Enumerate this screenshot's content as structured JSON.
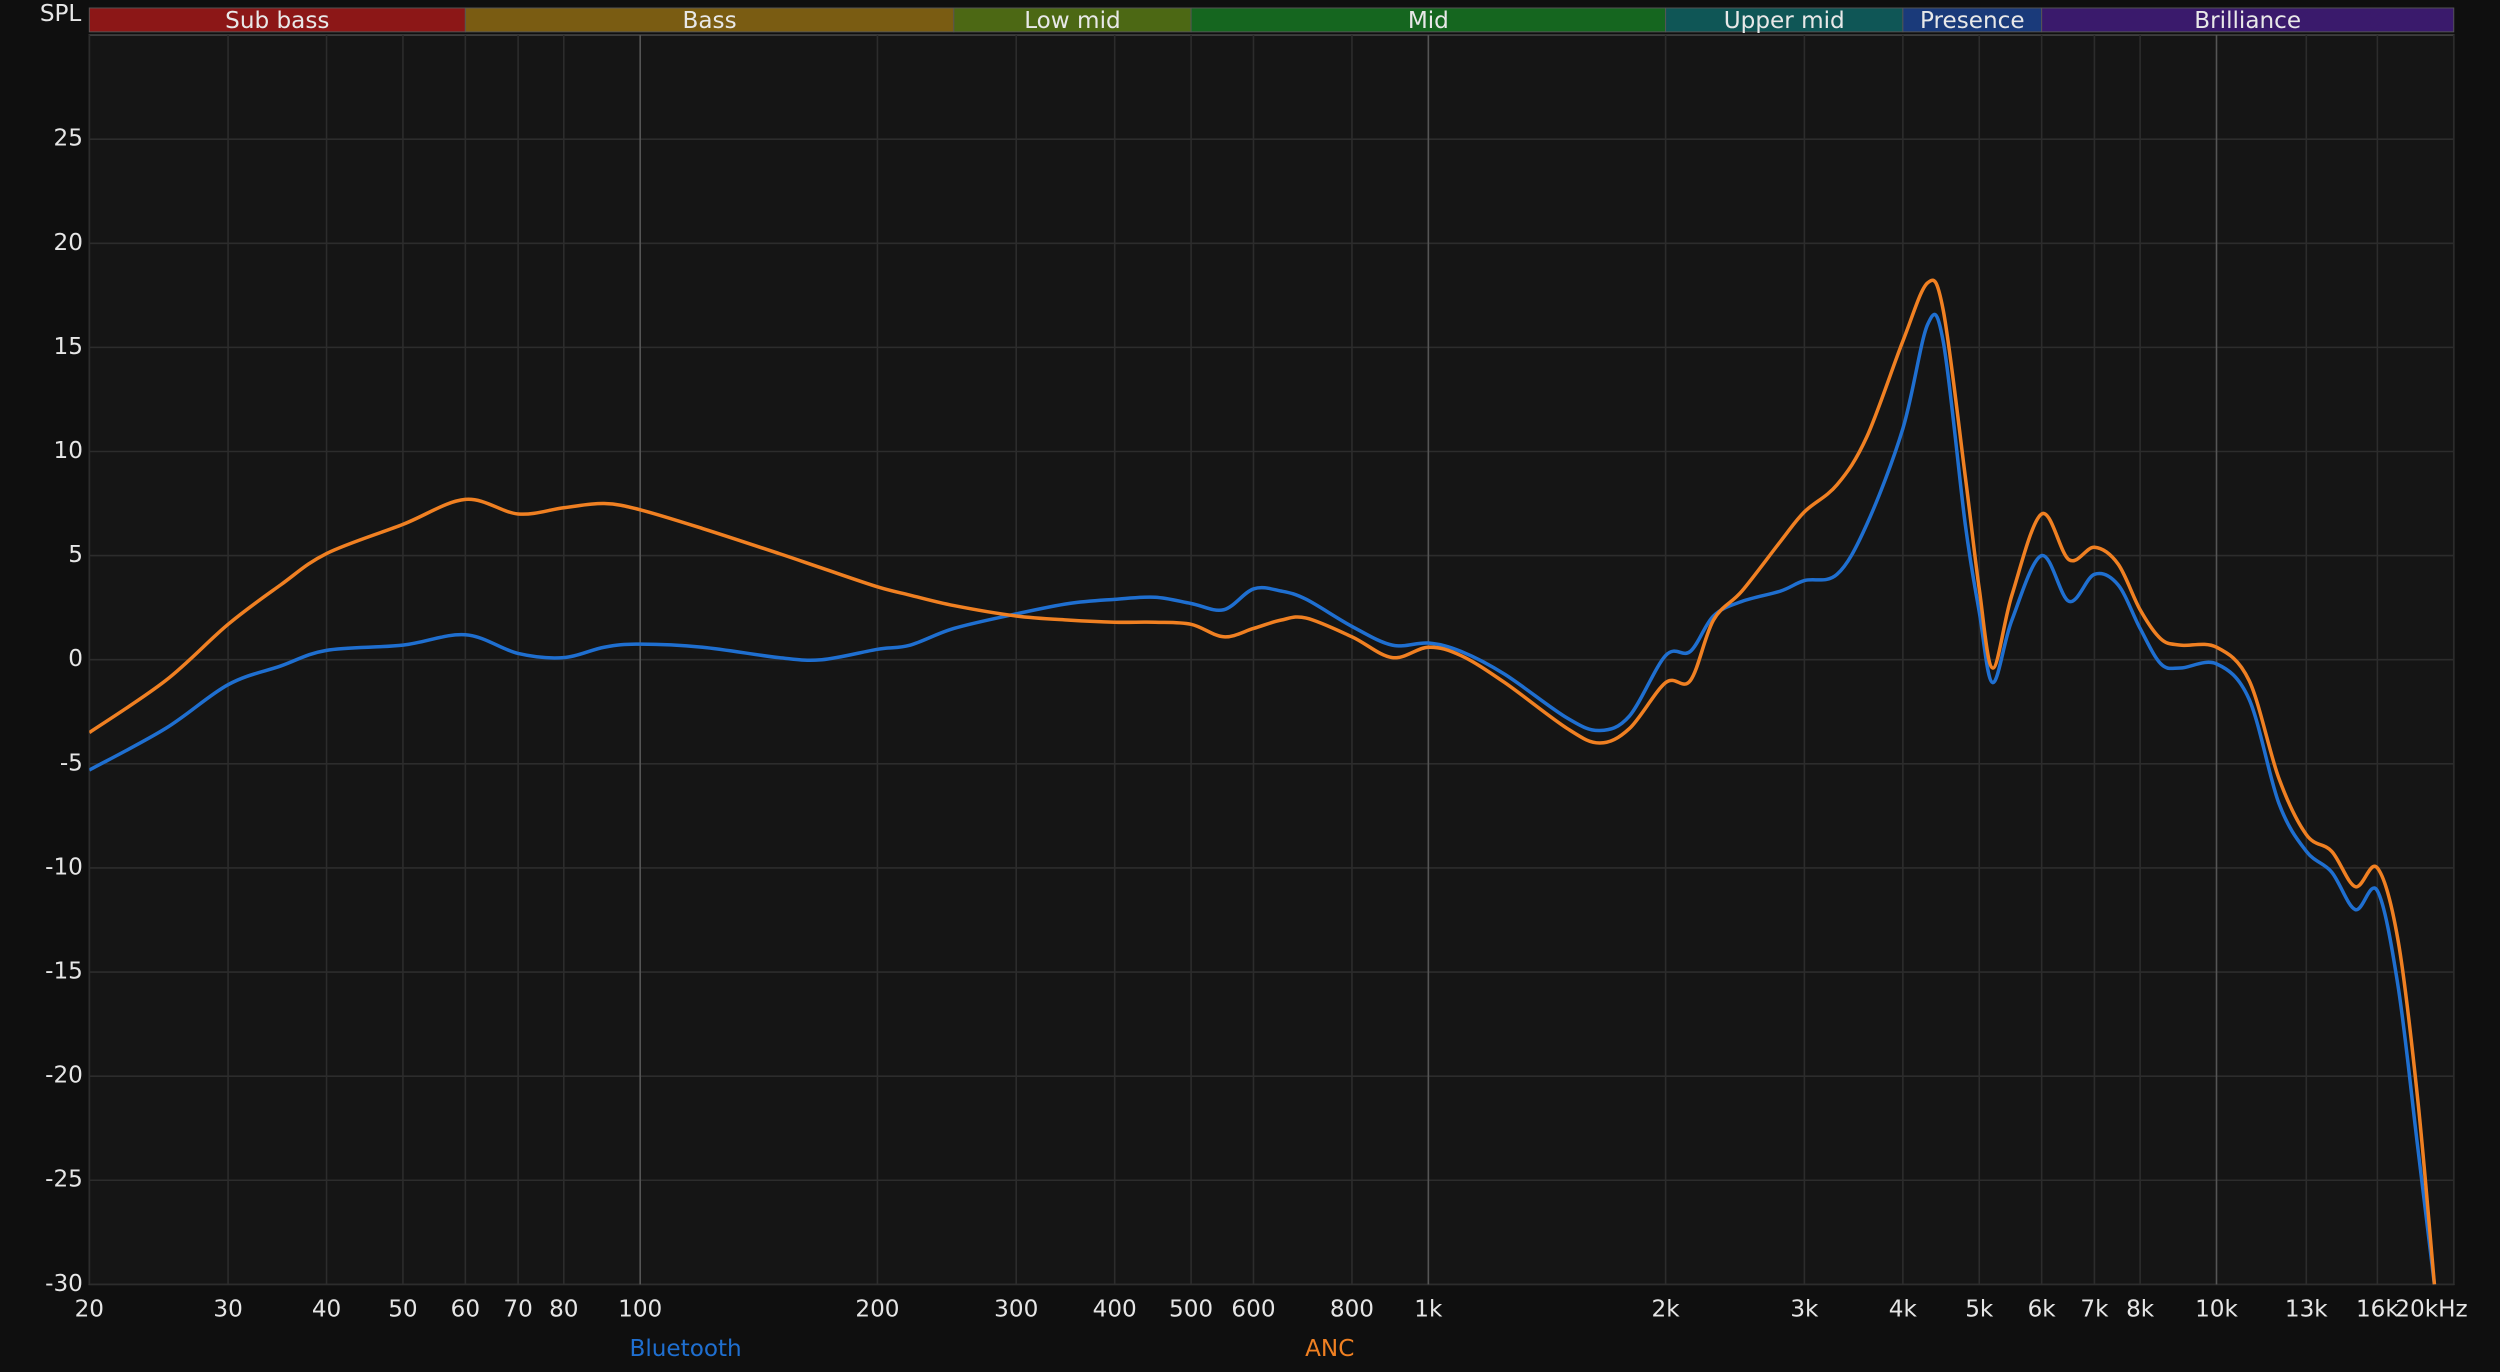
{
  "chart_data": {
    "type": "line",
    "y_label": "SPL",
    "log_x": true,
    "grid": true,
    "xlim": [
      20,
      20000
    ],
    "ylim": [
      -30,
      30
    ],
    "xticks": [
      20,
      30,
      40,
      50,
      60,
      70,
      80,
      100,
      200,
      300,
      400,
      500,
      600,
      800,
      {
        "value": 1000,
        "label": "1k"
      },
      {
        "value": 2000,
        "label": "2k"
      },
      {
        "value": 3000,
        "label": "3k"
      },
      {
        "value": 4000,
        "label": "4k"
      },
      {
        "value": 5000,
        "label": "5k"
      },
      {
        "value": 6000,
        "label": "6k"
      },
      {
        "value": 7000,
        "label": "7k"
      },
      {
        "value": 8000,
        "label": "8k"
      },
      {
        "value": 10000,
        "label": "10k"
      },
      {
        "value": 13000,
        "label": "13k"
      },
      {
        "value": 16000,
        "label": "16k"
      },
      {
        "value": 20000,
        "label": "20kHz"
      }
    ],
    "yticks": [
      -30,
      -25,
      -20,
      -15,
      -10,
      -5,
      0,
      5,
      10,
      15,
      20,
      25
    ],
    "bands": [
      {
        "label": "Sub bass",
        "from": 20,
        "to": 60,
        "color": "#8c1717"
      },
      {
        "label": "Bass",
        "from": 60,
        "to": 250,
        "color": "#7a5c12"
      },
      {
        "label": "Low mid",
        "from": 250,
        "to": 500,
        "color": "#4c6814"
      },
      {
        "label": "Mid",
        "from": 500,
        "to": 2000,
        "color": "#15661f"
      },
      {
        "label": "Upper mid",
        "from": 2000,
        "to": 4000,
        "color": "#0f5656"
      },
      {
        "label": "Presence",
        "from": 4000,
        "to": 6000,
        "color": "#1a3a7a"
      },
      {
        "label": "Brilliance",
        "from": 6000,
        "to": 20000,
        "color": "#3a1a6c"
      }
    ],
    "x": [
      20,
      25,
      30,
      35,
      40,
      50,
      60,
      70,
      80,
      90,
      100,
      120,
      150,
      170,
      200,
      220,
      250,
      300,
      350,
      400,
      450,
      500,
      550,
      600,
      650,
      700,
      800,
      900,
      1000,
      1100,
      1250,
      1500,
      1650,
      1800,
      2000,
      2150,
      2300,
      2500,
      2800,
      3000,
      3300,
      3600,
      4000,
      4300,
      4500,
      4800,
      5000,
      5200,
      5500,
      6000,
      6500,
      7000,
      7500,
      8000,
      8500,
      9000,
      10000,
      11000,
      12000,
      13000,
      14000,
      15000,
      16000,
      17000,
      18000,
      18900
    ],
    "series": [
      {
        "name": "Bluetooth",
        "color": "#1f6fd0",
        "values": [
          -5.3,
          -3.3,
          -1.2,
          -0.3,
          0.45,
          0.7,
          1.2,
          0.3,
          0.1,
          0.6,
          0.75,
          0.6,
          0.1,
          0.0,
          0.5,
          0.7,
          1.5,
          2.2,
          2.7,
          2.9,
          3.0,
          2.7,
          2.4,
          3.4,
          3.3,
          2.9,
          1.6,
          0.7,
          0.8,
          0.4,
          -0.7,
          -2.8,
          -3.4,
          -2.7,
          0.2,
          0.4,
          2.1,
          2.8,
          3.3,
          3.8,
          4.1,
          6.5,
          11.1,
          16.1,
          15.3,
          6.5,
          2.3,
          -1.1,
          1.9,
          5.0,
          2.8,
          4.1,
          3.6,
          1.5,
          -0.2,
          -0.4,
          -0.2,
          -1.9,
          -6.9,
          -9.2,
          -10.2,
          -12.0,
          -11.1,
          -15.7,
          -23.4,
          -30
        ]
      },
      {
        "name": "ANC",
        "color": "#f08022",
        "values": [
          -3.5,
          -1.0,
          1.7,
          3.6,
          5.1,
          6.5,
          7.7,
          7.0,
          7.3,
          7.5,
          7.2,
          6.3,
          5.1,
          4.4,
          3.5,
          3.1,
          2.6,
          2.1,
          1.9,
          1.8,
          1.8,
          1.7,
          1.1,
          1.5,
          1.9,
          2.0,
          1.1,
          0.1,
          0.6,
          0.2,
          -1.1,
          -3.3,
          -4.0,
          -3.3,
          -1.1,
          -1.0,
          1.9,
          3.3,
          5.7,
          7.1,
          8.4,
          10.7,
          15.3,
          18.1,
          16.8,
          8.8,
          3.4,
          -0.4,
          3.1,
          7.0,
          4.8,
          5.4,
          4.6,
          2.4,
          1.0,
          0.7,
          0.6,
          -1.0,
          -5.7,
          -8.4,
          -9.2,
          -10.9,
          -10.0,
          -13.5,
          -21.1,
          -30
        ]
      }
    ]
  }
}
